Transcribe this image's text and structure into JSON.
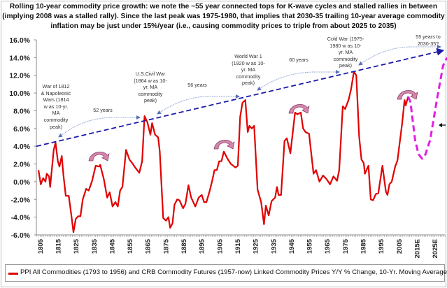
{
  "title": "Rolling 10-year commodity price growth: we note the ~55 year connected tops for K-wave cycles and stalled rallies in between\n(implying 2008 was a stalled rally). Since the last peak was 1975-1980, that implies that 2030-35 trailing 10-year average commodity\ninflation may be just under 15%/year (i.e., causing commodity prices to triple from about 2025 to 2035)",
  "chart_data": {
    "type": "line",
    "title": "Rolling 10-year commodity price growth: we note the ~55 year connected tops for K-wave cycles and stalled rallies in between (implying 2008 was a stalled rally). Since the last peak was 1975-1980, that implies that 2030-35 trailing 10-year average commodity inflation may be just under 15%/year (i.e., causing commodity prices to triple from about 2025 to 2035)",
    "xlabel": "",
    "ylabel": "",
    "xlim": [
      1803,
      2031
    ],
    "ylim": [
      -6,
      16
    ],
    "yticks": [
      "-6.0%",
      "-4.0%",
      "-2.0%",
      "0.0%",
      "2.0%",
      "4.0%",
      "6.0%",
      "8.0%",
      "10.0%",
      "12.0%",
      "14.0%",
      "16.0%"
    ],
    "ytick_values": [
      -6,
      -4,
      -2,
      0,
      2,
      4,
      6,
      8,
      10,
      12,
      14,
      16
    ],
    "xticks": [
      "1805",
      "1815",
      "1825",
      "1835",
      "1845",
      "1855",
      "1865",
      "1875",
      "1885",
      "1895",
      "1905",
      "1915",
      "1925",
      "1935",
      "1945",
      "1955",
      "1965",
      "1975",
      "1985",
      "1995",
      "2005",
      "2015E",
      "2025E"
    ],
    "xtick_values": [
      1805,
      1815,
      1825,
      1835,
      1845,
      1855,
      1865,
      1875,
      1885,
      1895,
      1905,
      1915,
      1925,
      1935,
      1945,
      1955,
      1965,
      1975,
      1985,
      1995,
      2005,
      2015,
      2025
    ],
    "grid": false,
    "legend": "bottom",
    "series": [
      {
        "name": "PPI All Commodities (1793 to 1956) and CRB Commodity Futures (1957-now) Linked Commodity Prices Y/Y % Change, 10-Yr. Moving Average",
        "color": "#e00000",
        "style": "solid",
        "x": [
          1804.1,
          1805.4,
          1806.7,
          1808.0,
          1808.7,
          1810.0,
          1810.6,
          1812.6,
          1813.6,
          1814.9,
          1815.8,
          1817.1,
          1818.0,
          1819.3,
          1821.0,
          1822.3,
          1823.6,
          1824.9,
          1826.2,
          1827.5,
          1828.8,
          1830.7,
          1832.1,
          1834.0,
          1836.0,
          1837.9,
          1838.5,
          1840.5,
          1842.4,
          1843.8,
          1845.4,
          1847.0,
          1848.3,
          1849.6,
          1850.9,
          1852.9,
          1854.8,
          1856.7,
          1858.0,
          1860.3,
          1861.9,
          1863.2,
          1864.8,
          1866.5,
          1867.4,
          1869.1,
          1870.8,
          1871.7,
          1873.6,
          1875.2,
          1876.5,
          1877.5,
          1878.8,
          1879.9,
          1881.4,
          1882.7,
          1884.7,
          1886.0,
          1887.7,
          1889.2,
          1891.5,
          1893.4,
          1895.1,
          1896.4,
          1897.7,
          1899.6,
          1900.9,
          1902.2,
          1903.5,
          1904.8,
          1906.1,
          1907.4,
          1909.4,
          1911.3,
          1912.0,
          1913.9,
          1915.2,
          1916.5,
          1917.8,
          1919.4,
          1920.7,
          1921.7,
          1923.0,
          1924.3,
          1926.2,
          1928.2,
          1929.8,
          1930.8,
          1932.4,
          1934.0,
          1936.0,
          1937.0,
          1937.9,
          1939.3,
          1941.2,
          1942.5,
          1944.5,
          1947.1,
          1948.4,
          1950.3,
          1951.6,
          1952.9,
          1954.9,
          1957.4,
          1958.8,
          1960.7,
          1962.7,
          1964.6,
          1966.6,
          1968.5,
          1970.5,
          1971.7,
          1973.7,
          1975.0,
          1976.9,
          1978.3,
          1979.9,
          1981.2,
          1982.8,
          1984.1,
          1985.4,
          1986.0,
          1988.0,
          1989.3,
          1990.6,
          1992.1,
          1993.5,
          1995.8,
          1997.7,
          1998.6,
          1999.7,
          2001.0,
          2002.9,
          2004.2,
          2006.8,
          2008.1,
          2008.8,
          2010.1
        ],
        "y": [
          1.3,
          -0.3,
          0.4,
          0,
          0.9,
          0.6,
          -0.6,
          3.6,
          4.4,
          2.3,
          1.7,
          2.9,
          0.8,
          -1.6,
          -1.6,
          -3.6,
          -5.7,
          -4.2,
          -3.9,
          -3.9,
          -2.0,
          -0.8,
          -1.0,
          0.1,
          1.8,
          1.7,
          1.9,
          0.3,
          -1.8,
          -1.2,
          -2.8,
          -2.3,
          -2.8,
          -1.0,
          -0.6,
          3.6,
          2.5,
          2.0,
          1.6,
          1.0,
          2.3,
          7.4,
          6.7,
          5.3,
          6.6,
          5.3,
          5.0,
          3.4,
          -4.1,
          -4.4,
          -4.0,
          -5.2,
          -4.7,
          -2.6,
          -2.0,
          -2.1,
          -3.0,
          -2.5,
          -0.4,
          -1.8,
          -2.8,
          -1.8,
          -1.5,
          -2.3,
          -2.3,
          -1.0,
          0.1,
          1.3,
          1.3,
          2.3,
          2.3,
          3.4,
          2.6,
          2.0,
          1.9,
          1.6,
          1.8,
          7.3,
          8.9,
          9.2,
          5.6,
          6.3,
          6.0,
          6.3,
          -0.9,
          -2.3,
          -4.8,
          -2.7,
          -3.8,
          -2.2,
          -1.8,
          -0.6,
          -1.5,
          -1.5,
          4.6,
          4.9,
          3.2,
          7.8,
          7.6,
          7.8,
          6.0,
          5.6,
          5.4,
          0.9,
          1.3,
          0,
          0.7,
          0.3,
          -0.3,
          0.6,
          0.1,
          1.3,
          8.5,
          8.2,
          9.2,
          10.4,
          12.4,
          12.0,
          5.1,
          2.5,
          2.1,
          0.9,
          1.8,
          -2.0,
          -2.1,
          -1.4,
          -1.3,
          1.8,
          -1.1,
          -1.5,
          -0.3,
          0,
          1.7,
          2.4,
          6.6,
          9.2,
          8.6,
          9.6
        ]
      },
      {
        "color": "#e020e0",
        "style": "dashed",
        "x": [
          2010.1,
          2011.4,
          2014.0,
          2015.9,
          2017.9,
          2019.8,
          2022.4,
          2026.3,
          2029.6,
          2031.8
        ],
        "y": [
          9.6,
          9.0,
          4.7,
          3.1,
          2.6,
          3.1,
          4.7,
          9.4,
          13.1,
          14.0
        ]
      },
      {
        "color": "#1a1aa8",
        "style": "dashed",
        "x": [
          1803,
          2029.6
        ],
        "y": [
          4.0,
          14.8
        ]
      }
    ],
    "annotations": [
      {
        "text": "War of 1812\n& Napoleonic\nWars (1814\nw as 10-yr.\nMA\ncommodity\npeak)"
      },
      {
        "text": "52 years"
      },
      {
        "text": "U.S.Civil War\n(1864 w as 10-\nyr. MA\ncommodity\npeak)"
      },
      {
        "text": "56 years"
      },
      {
        "text": "World War 1\n(1920 w as 10-\nyr. MA\ncommodity\npeak)"
      },
      {
        "text": "60 years"
      },
      {
        "text": "Cold War (1975-\n1980 w as 10-\nyr. MA\ncommodity\npeak)"
      },
      {
        "text": "55 years to\n2030-35?"
      }
    ]
  },
  "colors": {
    "series": "#e00000",
    "projection": "#e020e0",
    "trend": "#1a1aa8",
    "interval_arrows": "#8fa2d4",
    "stall_arrows": "#d784ad"
  }
}
